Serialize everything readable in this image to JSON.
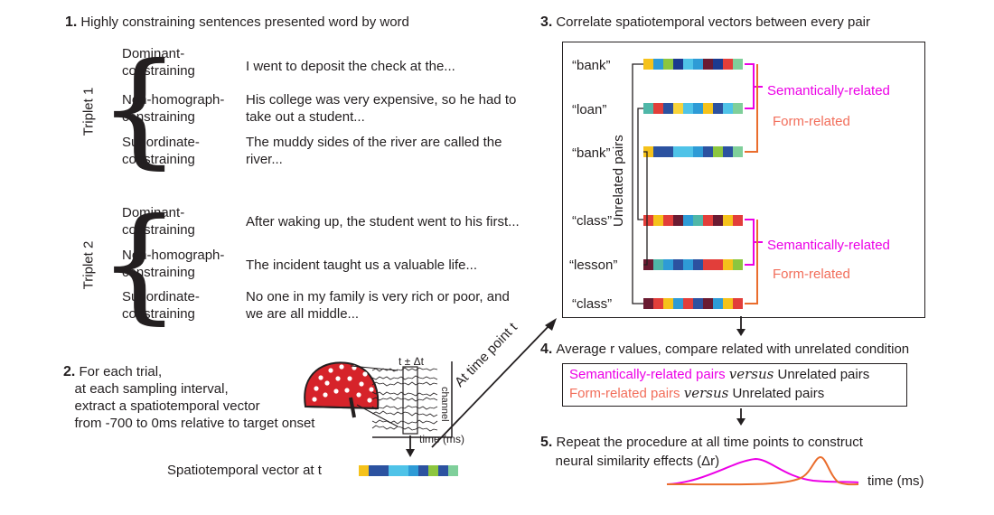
{
  "step1": {
    "num": "1.",
    "title": "Highly constraining sentences presented word by word",
    "triplets": [
      {
        "name": "Triplet 1",
        "rows": [
          {
            "label1": "Dominant-",
            "label2": "constraining",
            "sentence1": "I went to deposit the check at the...",
            "sentence2": ""
          },
          {
            "label1": "Non-homograph-",
            "label2": "constraining",
            "sentence1": "His college was very expensive, so he had to",
            "sentence2": "take out a student..."
          },
          {
            "label1": "Subordinate-",
            "label2": "constraining",
            "sentence1": "The muddy sides of the river are called the",
            "sentence2": "river..."
          }
        ]
      },
      {
        "name": "Triplet 2",
        "rows": [
          {
            "label1": "Dominant-",
            "label2": "constraining",
            "sentence1": "After waking up, the student went to his first...",
            "sentence2": ""
          },
          {
            "label1": "Non-homograph-",
            "label2": "constraining",
            "sentence1": "The incident taught us a valuable life...",
            "sentence2": ""
          },
          {
            "label1": "Subordinate-",
            "label2": "constraining",
            "sentence1": "No one in my family is very rich or poor, and",
            "sentence2": "we are all middle..."
          }
        ]
      }
    ]
  },
  "step2": {
    "num": "2.",
    "line1": "For each trial,",
    "line2": "at each sampling interval,",
    "line3": "extract a spatiotemporal vector",
    "line4": "from -700 to 0ms relative to target onset",
    "window_label": "t ± Δt",
    "channel_label": "channel",
    "time_label": "time (ms)",
    "vector_label": "Spatiotemporal vector at t",
    "arrow_label": "At time point t"
  },
  "step3": {
    "num": "3.",
    "title": "Correlate spatiotemporal vectors between every pair",
    "words": [
      "“bank”",
      "“loan”",
      "“bank”",
      "“class”",
      "“lesson”",
      "“class”"
    ],
    "unrelated_label": "Unrelated pairs",
    "sem_label": "Semantically-related",
    "form_label": "Form-related"
  },
  "step4": {
    "num": "4.",
    "title": "Average r values, compare related with unrelated condition",
    "sem_pairs": "Semantically-related pairs",
    "form_pairs": "Form-related pairs",
    "versus": "versus",
    "unrelated_pairs": "Unrelated pairs"
  },
  "step5": {
    "num": "5.",
    "line1": "Repeat the procedure at all time points to construct",
    "line2": "neural similarity effects (Δr)",
    "time_label": "time (ms)"
  },
  "colors": {
    "magenta": "#ec00e6",
    "salmon": "#f26e5b",
    "orange": "#ea6d2d",
    "ink": "#231f20",
    "cap_red": "#d6232a"
  },
  "vectors": {
    "bank": [
      "#f5c21b",
      "#2e9bd6",
      "#8cc63f",
      "#1b3a8f",
      "#4fc3e8",
      "#2e9bd6",
      "#6a1b32",
      "#1b3a8f",
      "#e23e3a",
      "#7fcf9a"
    ],
    "loan": [
      "#4fb7a8",
      "#e23e3a",
      "#2c52a0",
      "#f7d33a",
      "#4fc3e8",
      "#2e9bd6",
      "#f5c21b",
      "#2c52a0",
      "#4fc3e8",
      "#7fcf9a"
    ],
    "bank2": [
      "#f5c21b",
      "#2c52a0",
      "#2c52a0",
      "#4fc3e8",
      "#4fc3e8",
      "#2e9bd6",
      "#2c52a0",
      "#8cc63f",
      "#2c52a0",
      "#7fcf9a"
    ],
    "class": [
      "#e23e3a",
      "#f5c21b",
      "#e23e3a",
      "#6a1b32",
      "#2e9bd6",
      "#4fb7a8",
      "#e23e3a",
      "#6a1b32",
      "#f5c21b",
      "#e23e3a"
    ],
    "lesson": [
      "#6a1b32",
      "#4fb7a8",
      "#2e9bd6",
      "#2c52a0",
      "#2e9bd6",
      "#2c52a0",
      "#e23e3a",
      "#e23e3a",
      "#f5c21b",
      "#8cc63f"
    ],
    "class2": [
      "#6a1b32",
      "#e23e3a",
      "#f5c21b",
      "#2e9bd6",
      "#e23e3a",
      "#2c52a0",
      "#6a1b32",
      "#2e9bd6",
      "#f5c21b",
      "#e23e3a"
    ],
    "step2": [
      "#f5c21b",
      "#2c52a0",
      "#2c52a0",
      "#4fc3e8",
      "#4fc3e8",
      "#2e9bd6",
      "#2c52a0",
      "#8cc63f",
      "#2c52a0",
      "#7fcf9a"
    ]
  }
}
